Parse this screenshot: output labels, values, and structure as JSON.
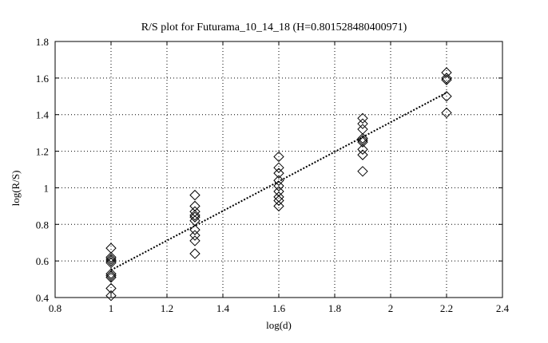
{
  "chart_data": {
    "type": "scatter",
    "title": "R/S plot for Futurama_10_14_18 (H=0.801528480400971)",
    "xlabel": "log(d)",
    "ylabel": "log(R/S)",
    "xlim": [
      0.8,
      2.4
    ],
    "ylim": [
      0.4,
      1.8
    ],
    "xticks": [
      0.8,
      1,
      1.2,
      1.4,
      1.6,
      1.8,
      2,
      2.2,
      2.4
    ],
    "xtick_labels": [
      "0.8",
      "1",
      "1.2",
      "1.4",
      "1.6",
      "1.8",
      "2",
      "2.2",
      "2.4"
    ],
    "yticks": [
      0.4,
      0.6,
      0.8,
      1,
      1.2,
      1.4,
      1.6,
      1.8
    ],
    "ytick_labels": [
      "0.4",
      "0.6",
      "0.8",
      "1",
      "1.2",
      "1.4",
      "1.6",
      "1.8"
    ],
    "grid": true,
    "grid_style": "dotted",
    "marker": "diamond",
    "series": [
      {
        "x": [
          1.0,
          1.0,
          1.0,
          1.0,
          1.0,
          1.0,
          1.0,
          1.0,
          1.0,
          1.0,
          1.3,
          1.3,
          1.3,
          1.3,
          1.3,
          1.3,
          1.3,
          1.3,
          1.3,
          1.3,
          1.6,
          1.6,
          1.6,
          1.6,
          1.6,
          1.6,
          1.6,
          1.6,
          1.6,
          1.9,
          1.9,
          1.9,
          1.9,
          1.9,
          1.9,
          1.9,
          1.9,
          1.9,
          2.2,
          2.2,
          2.2,
          2.2,
          2.2
        ],
        "y": [
          0.67,
          0.62,
          0.6,
          0.59,
          0.53,
          0.52,
          0.51,
          0.45,
          0.41,
          0.61,
          0.96,
          0.9,
          0.87,
          0.85,
          0.84,
          0.82,
          0.77,
          0.74,
          0.71,
          0.64,
          1.17,
          1.11,
          1.08,
          1.04,
          1.01,
          0.98,
          0.95,
          0.93,
          0.9,
          1.38,
          1.35,
          1.32,
          1.27,
          1.25,
          1.21,
          1.18,
          1.09,
          1.26,
          1.63,
          1.6,
          1.59,
          1.5,
          1.41
        ]
      }
    ],
    "fit_line": {
      "style": "dotted",
      "x": [
        1.0,
        2.2
      ],
      "y": [
        0.55,
        1.52
      ]
    }
  }
}
